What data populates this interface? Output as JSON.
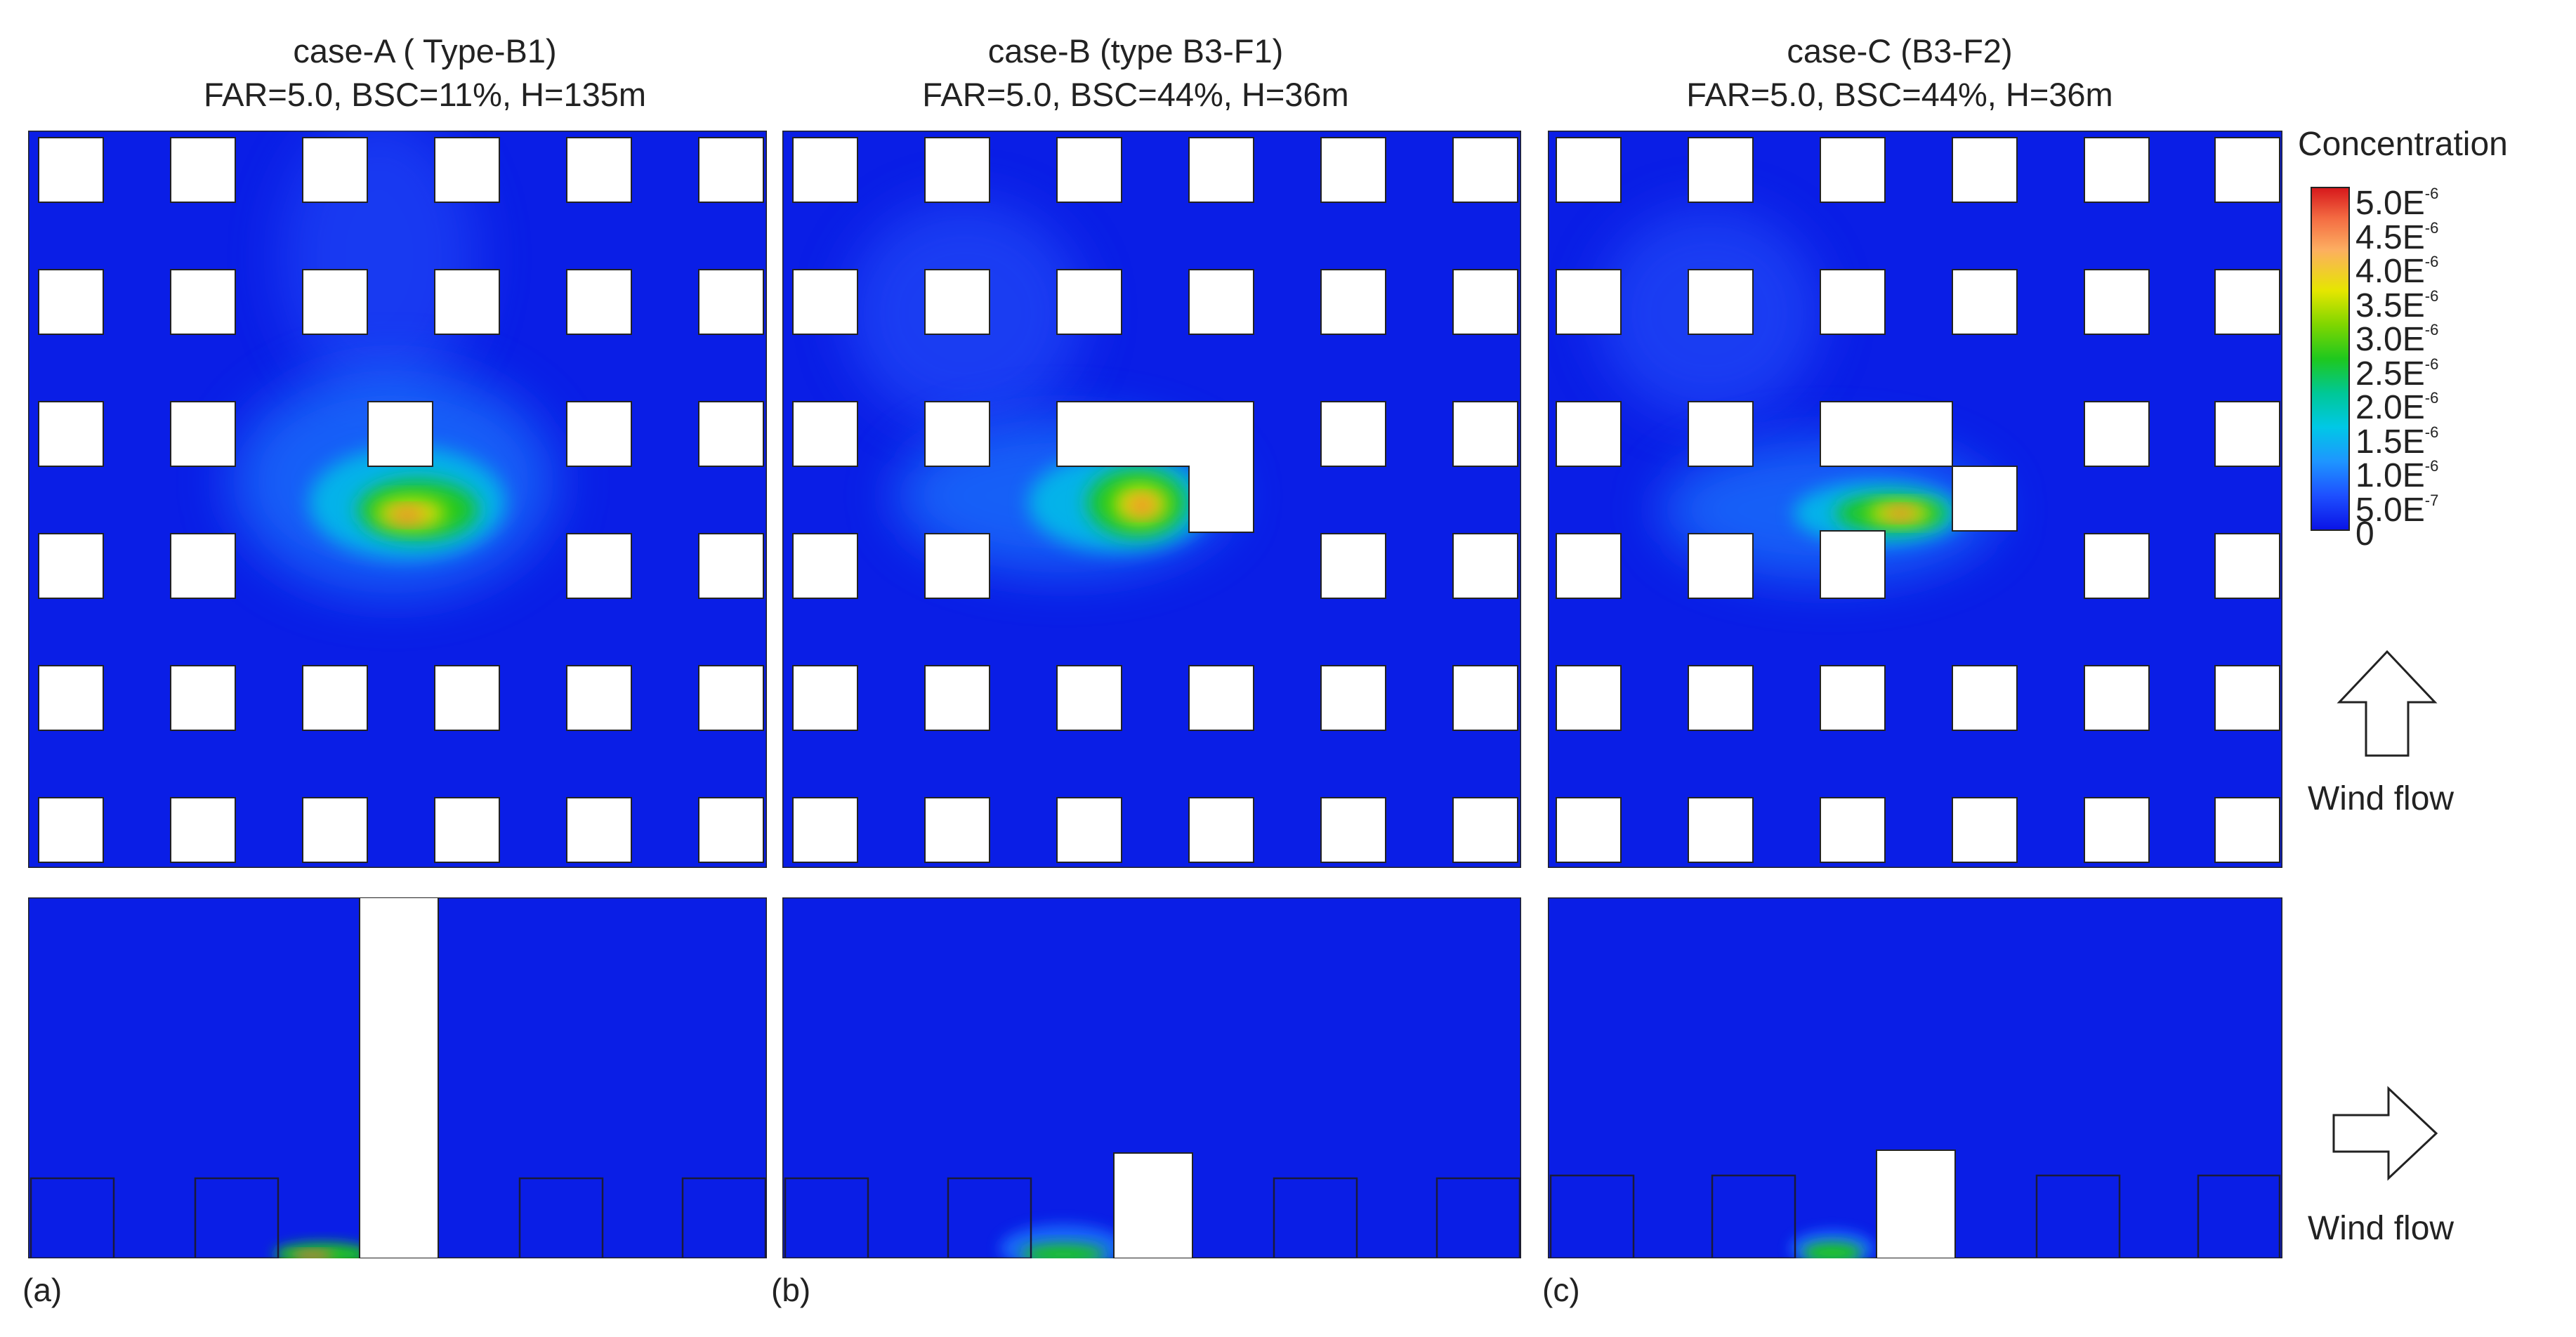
{
  "panels": [
    {
      "id": "a",
      "title_line1": "case-A ( Type-B1)",
      "title_line2": "FAR=5.0, BSC=11%, H=135m",
      "label": "(a)"
    },
    {
      "id": "b",
      "title_line1": "case-B (type B3-F1)",
      "title_line2": "FAR=5.0, BSC=44%, H=36m",
      "label": "(b)"
    },
    {
      "id": "c",
      "title_line1": "case-C (B3-F2)",
      "title_line2": "FAR=5.0, BSC=44%, H=36m",
      "label": "(c)"
    }
  ],
  "legend": {
    "title": "Concentration",
    "ticks": [
      {
        "mantissa": "5.0E",
        "exp": "-6"
      },
      {
        "mantissa": "4.5E",
        "exp": "-6"
      },
      {
        "mantissa": "4.0E",
        "exp": "-6"
      },
      {
        "mantissa": "3.5E",
        "exp": "-6"
      },
      {
        "mantissa": "3.0E",
        "exp": "-6"
      },
      {
        "mantissa": "2.5E",
        "exp": "-6"
      },
      {
        "mantissa": "2.0E",
        "exp": "-6"
      },
      {
        "mantissa": "1.5E",
        "exp": "-6"
      },
      {
        "mantissa": "1.0E",
        "exp": "-6"
      },
      {
        "mantissa": "5.0E",
        "exp": "-7"
      },
      {
        "mantissa": "0",
        "exp": ""
      }
    ],
    "colors": [
      "#d7191c",
      "#f46d43",
      "#fdae61",
      "#e6e600",
      "#7fd600",
      "#1ec81e",
      "#00c896",
      "#00c8e6",
      "#1e96ff",
      "#1e50ff",
      "#0a14e6"
    ]
  },
  "wind": {
    "plan_label": "Wind flow",
    "section_label": "Wind flow",
    "plan_icon": "arrow-up-icon",
    "section_icon": "arrow-right-icon"
  },
  "colors": {
    "background_field": "#0a1ee6",
    "building": "#ffffff"
  }
}
